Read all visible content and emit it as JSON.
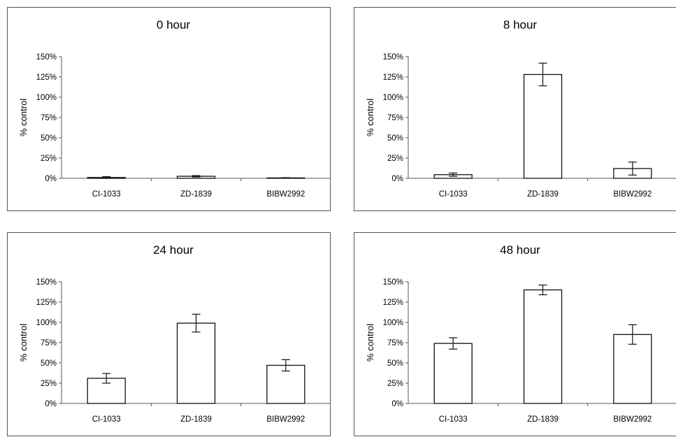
{
  "chart_data": [
    {
      "type": "bar",
      "title": "0 hour",
      "ylabel": "% control",
      "xlabel": "",
      "categories": [
        "CI-1033",
        "ZD-1839",
        "BIBW2992"
      ],
      "values": [
        1,
        2.5,
        0.5
      ],
      "errors": [
        1,
        0.8,
        0.3
      ],
      "ylim": [
        0,
        150
      ],
      "yticks": [
        "0%",
        "25%",
        "50%",
        "75%",
        "100%",
        "125%",
        "150%"
      ],
      "grid": false,
      "legend": "none"
    },
    {
      "type": "bar",
      "title": "8 hour",
      "ylabel": "% control",
      "xlabel": "",
      "categories": [
        "CI-1033",
        "ZD-1839",
        "BIBW2992"
      ],
      "values": [
        4.5,
        128,
        12
      ],
      "errors": [
        2,
        14,
        8
      ],
      "ylim": [
        0,
        150
      ],
      "yticks": [
        "0%",
        "25%",
        "50%",
        "75%",
        "100%",
        "125%",
        "150%"
      ],
      "grid": false,
      "legend": "none"
    },
    {
      "type": "bar",
      "title": "24 hour",
      "ylabel": "% control",
      "xlabel": "",
      "categories": [
        "CI-1033",
        "ZD-1839",
        "BIBW2992"
      ],
      "values": [
        31,
        99,
        47
      ],
      "errors": [
        6,
        11,
        7
      ],
      "ylim": [
        0,
        150
      ],
      "yticks": [
        "0%",
        "25%",
        "50%",
        "75%",
        "100%",
        "125%",
        "150%"
      ],
      "grid": false,
      "legend": "none"
    },
    {
      "type": "bar",
      "title": "48 hour",
      "ylabel": "% control",
      "xlabel": "",
      "categories": [
        "CI-1033",
        "ZD-1839",
        "BIBW2992"
      ],
      "values": [
        74,
        140,
        85
      ],
      "errors": [
        7,
        6,
        12
      ],
      "ylim": [
        0,
        150
      ],
      "yticks": [
        "0%",
        "25%",
        "50%",
        "75%",
        "100%",
        "125%",
        "150%"
      ],
      "grid": false,
      "legend": "none"
    }
  ]
}
